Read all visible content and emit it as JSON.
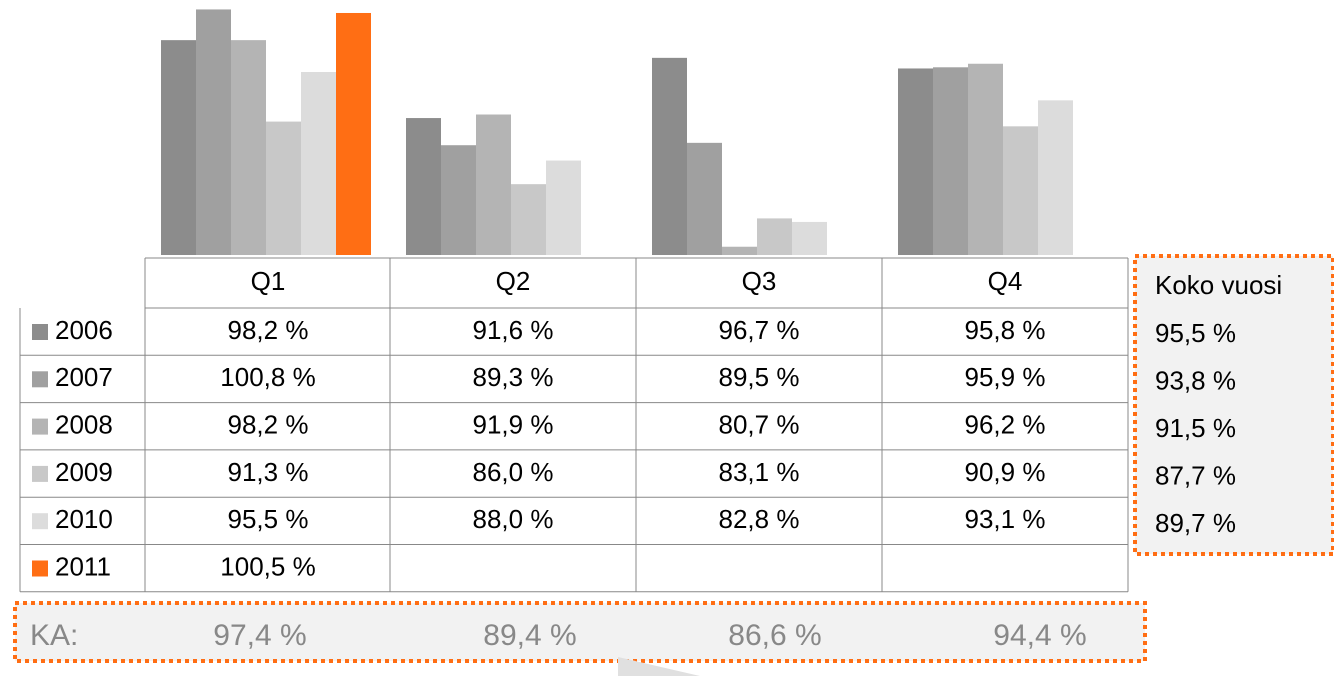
{
  "chart_data": {
    "type": "bar",
    "categories": [
      "Q1",
      "Q2",
      "Q3",
      "Q4"
    ],
    "ylim": [
      80,
      101.6
    ],
    "series": [
      {
        "name": "2006",
        "color": "#8c8c8c",
        "values": [
          98.2,
          91.6,
          96.7,
          95.8
        ],
        "value_labels": [
          "98,2 %",
          "91,6 %",
          "96,7 %",
          "95,8 %"
        ]
      },
      {
        "name": "2007",
        "color": "#a0a0a0",
        "values": [
          100.8,
          89.3,
          89.5,
          95.9
        ],
        "value_labels": [
          "100,8 %",
          "89,3 %",
          "89,5 %",
          "95,9 %"
        ]
      },
      {
        "name": "2008",
        "color": "#b4b4b4",
        "values": [
          98.2,
          91.9,
          80.7,
          96.2
        ],
        "value_labels": [
          "98,2 %",
          "91,9 %",
          "80,7 %",
          "96,2 %"
        ]
      },
      {
        "name": "2009",
        "color": "#c8c8c8",
        "values": [
          91.3,
          86.0,
          83.1,
          90.9
        ],
        "value_labels": [
          "91,3 %",
          "86,0 %",
          "83,1 %",
          "90,9 %"
        ]
      },
      {
        "name": "2010",
        "color": "#dcdcdc",
        "values": [
          95.5,
          88.0,
          82.8,
          93.1
        ],
        "value_labels": [
          "95,5 %",
          "88,0 %",
          "82,8 %",
          "93,1 %"
        ]
      },
      {
        "name": "2011",
        "color": "#ff6e14",
        "values": [
          100.5,
          null,
          null,
          null
        ],
        "value_labels": [
          "100,5 %",
          null,
          null,
          null
        ]
      }
    ],
    "annual": {
      "title": "Koko vuosi",
      "values": [
        95.5,
        93.8,
        91.5,
        87.7,
        89.7
      ],
      "value_labels": [
        "95,5 %",
        "93,8 %",
        "91,5 %",
        "87,7 %",
        "89,7 %"
      ]
    },
    "average": {
      "label": "KA:",
      "values": [
        97.4,
        89.4,
        86.6,
        94.4
      ],
      "value_labels": [
        "97,4 %",
        "89,4 %",
        "86,6 %",
        "94,4 %"
      ]
    }
  }
}
